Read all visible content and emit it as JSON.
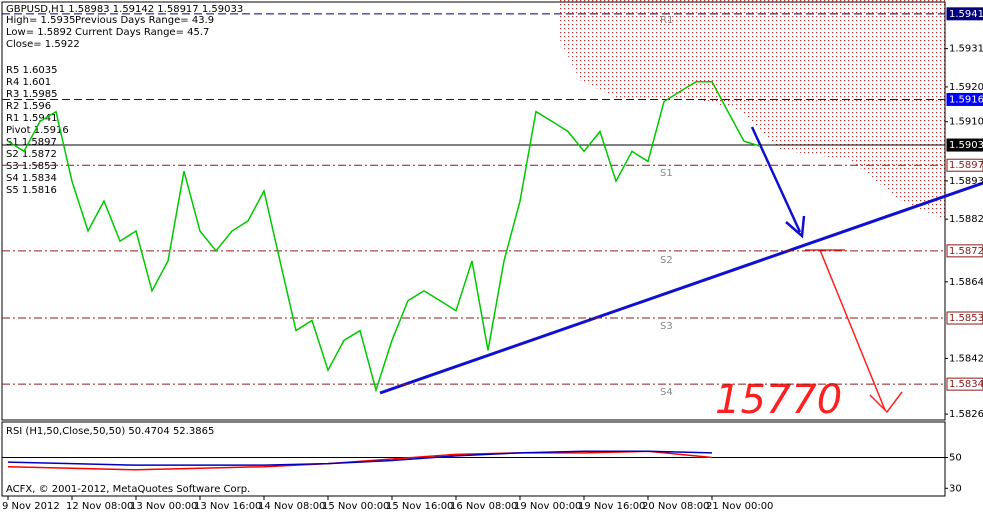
{
  "header": {
    "symbol_line": "GBPUSD,H1  1.58983 1.59142 1.58917 1.59033",
    "high": "High= 1.5935",
    "prev_range": "Previous Days Range= 43.9",
    "low": "Low= 1.5892",
    "curr_range": "Current Days Range= 45.7",
    "close": "Close= 1.5922"
  },
  "pivots": [
    "R5 1.6035",
    "R4 1.601",
    "R3 1.5985",
    "R2 1.596",
    "R1 1.5941",
    "Pivot 1.5916",
    "S1 1.5897",
    "S2 1.5872",
    "S3 1.5853",
    "S4 1.5834",
    "S5 1.5816"
  ],
  "zone_labels": [
    {
      "text": "R1",
      "value": 1.5941
    },
    {
      "text": "S1",
      "value": 1.5897
    },
    {
      "text": "S2",
      "value": 1.5872
    },
    {
      "text": "S3",
      "value": 1.5853
    },
    {
      "text": "S4",
      "value": 1.5834
    }
  ],
  "annotation": "15770",
  "footer": "ACFX, © 2001-2012, MetaQuotes Software Corp.",
  "chart_data": [
    {
      "type": "line",
      "ylim": [
        1.58243,
        1.59444
      ],
      "yticks": [
        {
          "value": 1.5931,
          "label": "1.59310"
        },
        {
          "value": 1.592,
          "label": "1.59200"
        },
        {
          "value": 1.591,
          "label": "1.59100"
        },
        {
          "value": 1.5893,
          "label": "1.58930"
        },
        {
          "value": 1.5882,
          "label": "1.58820"
        },
        {
          "value": 1.5864,
          "label": "1.58640"
        },
        {
          "value": 1.5842,
          "label": "1.58420"
        },
        {
          "value": 1.5826,
          "label": "1.58260"
        }
      ],
      "levels": [
        {
          "value": 1.5941,
          "label": "1.59410",
          "color": "#00007f",
          "style": "dash"
        },
        {
          "value": 1.59164,
          "label": "1.59164",
          "color": "#0000ff",
          "style": "dash"
        },
        {
          "value": 1.59033,
          "label": "1.59033",
          "color": "#000000",
          "style": "solid"
        },
        {
          "value": 1.58975,
          "label": "1.58975",
          "color": "#8b1a1a",
          "style": "dashdot"
        },
        {
          "value": 1.58729,
          "label": "1.58729",
          "color": "#8b1a1a",
          "style": "dashdot"
        },
        {
          "value": 1.58536,
          "label": "1.58536",
          "color": "#8b1a1a",
          "style": "dashdot"
        },
        {
          "value": 1.58346,
          "label": "1.58346",
          "color": "#8b1a1a",
          "style": "dashdot"
        }
      ],
      "categories": [
        "9 Nov 2012",
        null,
        null,
        null,
        "12 Nov 08:00",
        null,
        null,
        null,
        "13 Nov 00:00",
        null,
        null,
        null,
        "13 Nov 16:00",
        null,
        null,
        null,
        "14 Nov 08:00",
        null,
        null,
        null,
        "15 Nov 00:00",
        null,
        null,
        null,
        "15 Nov 16:00",
        null,
        null,
        null,
        "16 Nov 08:00",
        null,
        null,
        null,
        "19 Nov 00:00",
        null,
        null,
        null,
        "19 Nov 16:00",
        null,
        null,
        null,
        "20 Nov 08:00",
        null,
        null,
        null,
        "21 Nov 00:00",
        null,
        null,
        null
      ],
      "series": [
        {
          "color": "#00c800",
          "values": [
            1.59044,
            1.59015,
            1.59101,
            1.59129,
            1.58929,
            1.58786,
            1.58872,
            1.58757,
            1.58786,
            1.58614,
            1.587,
            1.58958,
            1.58786,
            1.58729,
            1.58786,
            1.58815,
            1.58901,
            1.587,
            1.585,
            1.58529,
            1.58386,
            1.58472,
            1.585,
            1.58329,
            1.58472,
            1.58586,
            1.58614,
            1.58586,
            1.58557,
            1.587,
            1.58443,
            1.587,
            1.58872,
            1.59129,
            1.59101,
            1.59072,
            1.59015,
            1.59072,
            1.58929,
            1.59015,
            1.58986,
            1.59158,
            1.59187,
            1.59215,
            1.59215,
            1.59129,
            1.59044,
            1.5903
          ]
        }
      ]
    },
    {
      "type": "line",
      "title": "RSI (H1,50,Close,50,50) 50.4704 52.3865",
      "ylim": [
        25,
        73
      ],
      "yticks": [
        50,
        30
      ],
      "series": [
        {
          "color": "#ff0000",
          "values": [
            44,
            43,
            42,
            43,
            44,
            46,
            49,
            52,
            53,
            53,
            54,
            50
          ]
        },
        {
          "color": "#0000c0",
          "values": [
            47,
            46,
            45,
            45,
            45,
            46,
            48,
            51,
            53,
            54,
            54,
            53
          ]
        }
      ]
    }
  ]
}
